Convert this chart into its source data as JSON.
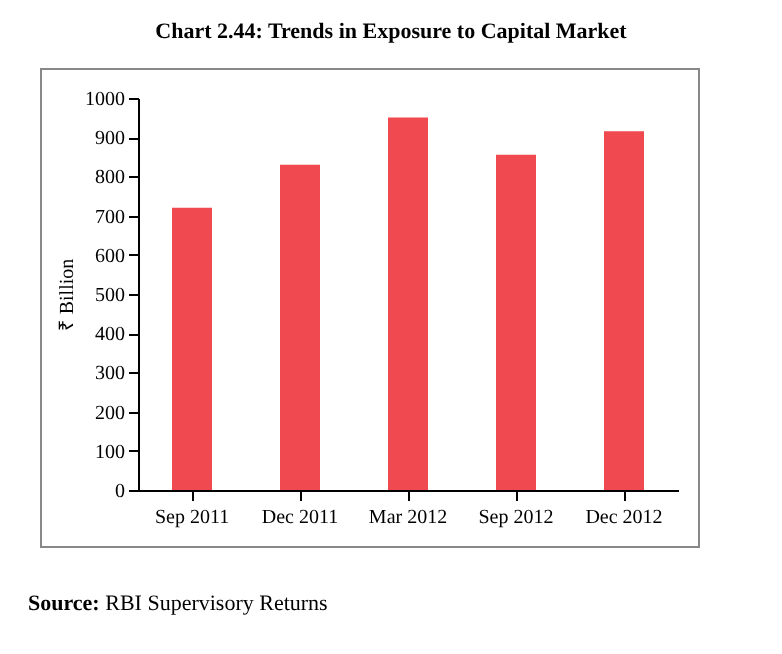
{
  "chart_data": {
    "type": "bar",
    "title": "Chart 2.44: Trends in Exposure to Capital Market",
    "ylabel": "₹ Billion",
    "categories": [
      "Sep 2011",
      "Dec 2011",
      "Mar 2012",
      "Sep 2012",
      "Dec 2012"
    ],
    "values": [
      720,
      830,
      950,
      855,
      915
    ],
    "color": "#f0494f",
    "ylim": [
      0,
      1000
    ],
    "yticks": [
      0,
      100,
      200,
      300,
      400,
      500,
      600,
      700,
      800,
      900,
      1000
    ],
    "annotations": [
      "Source: RBI Supervisory Returns"
    ]
  }
}
